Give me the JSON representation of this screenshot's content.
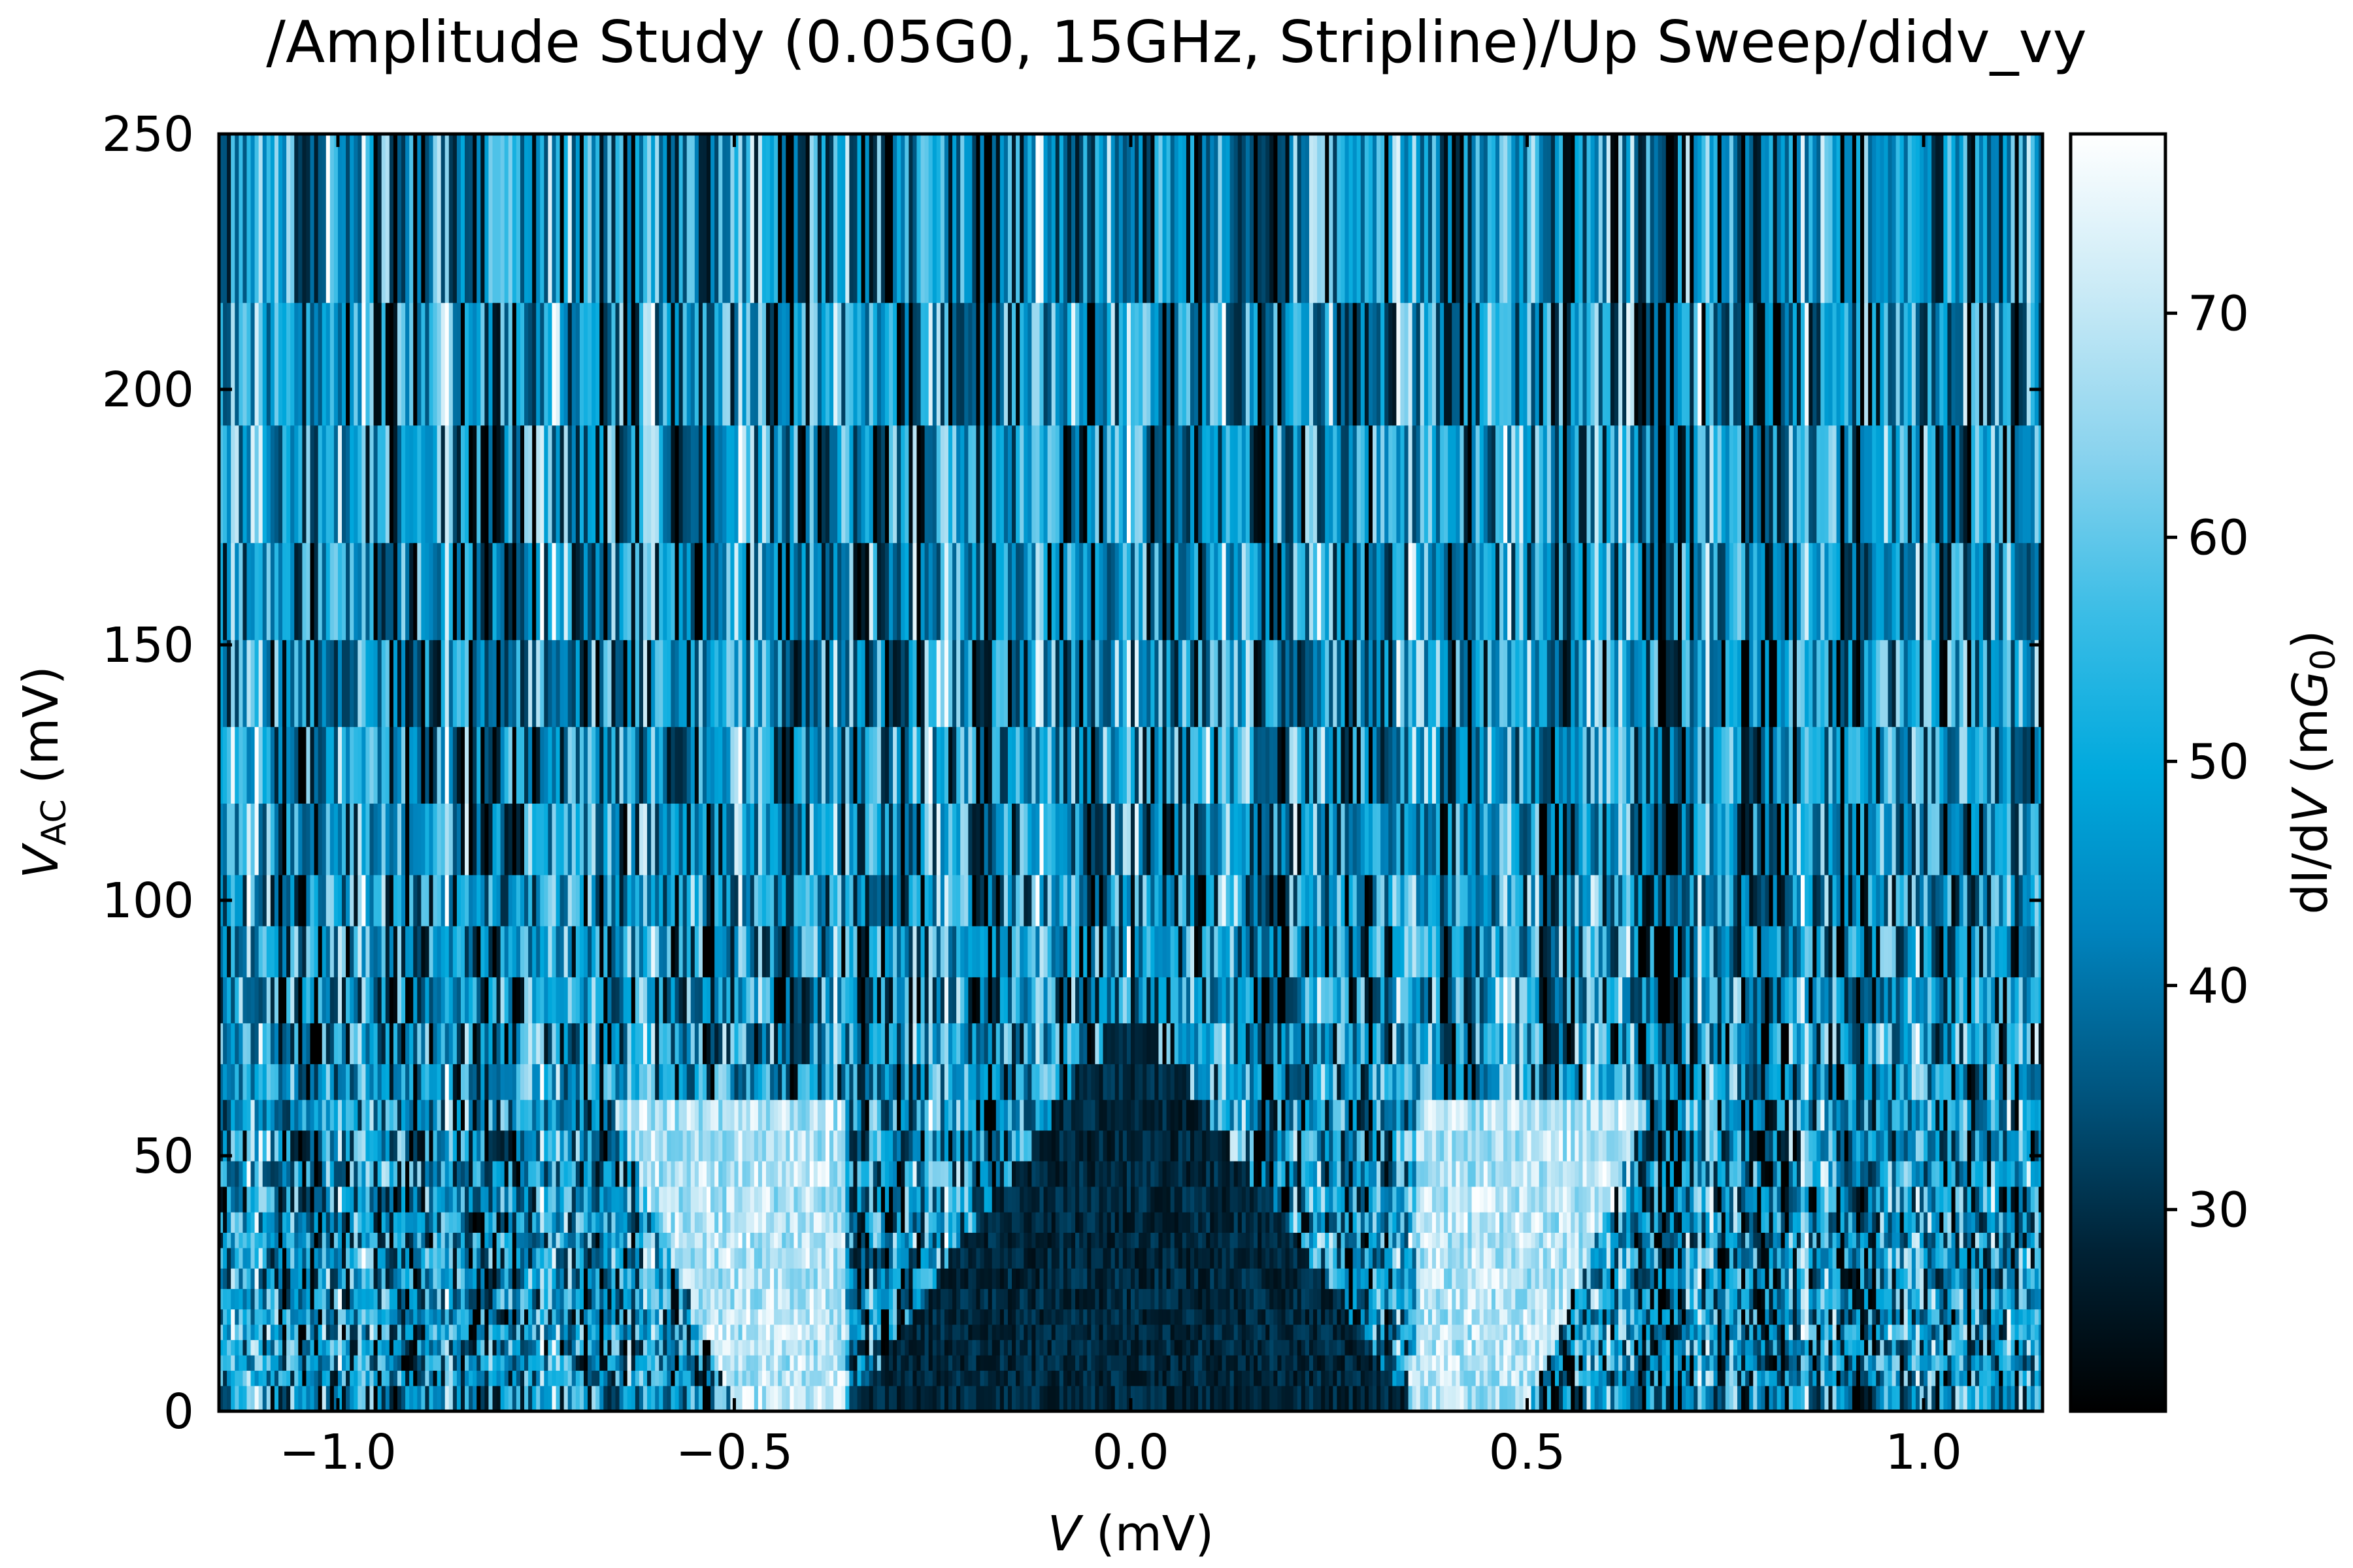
{
  "chart_data": {
    "type": "heatmap",
    "title": "/Amplitude Study (0.05G0, 15GHz, Stripline)/Up Sweep/didv_vy",
    "xlabel": {
      "var": "V",
      "unit": " (mV)"
    },
    "ylabel": {
      "var": "V",
      "sub": "AC",
      "unit": " (mV)"
    },
    "colorbar_label": {
      "pre": "dI/d",
      "var": "V",
      "mid": " (m",
      "var2": "G",
      "sub": "0",
      "post": ")"
    },
    "xlim": [
      -1.15,
      1.15
    ],
    "ylim": [
      0,
      250
    ],
    "clim": [
      21,
      78
    ],
    "x_ticks": [
      -1.0,
      -0.5,
      0.0,
      0.5,
      1.0
    ],
    "x_tick_labels": [
      "−1.0",
      "−0.5",
      "0.0",
      "0.5",
      "1.0"
    ],
    "y_ticks": [
      0,
      50,
      100,
      150,
      200,
      250
    ],
    "y_tick_labels": [
      "0",
      "50",
      "100",
      "150",
      "200",
      "250"
    ],
    "colorbar_ticks": [
      30,
      40,
      50,
      60,
      70
    ],
    "colorbar_tick_labels": [
      "30",
      "40",
      "50",
      "60",
      "70"
    ],
    "colormap": [
      "#000000",
      "#002235",
      "#00557f",
      "#0083bd",
      "#00a9dd",
      "#3bbde6",
      "#8ad3ee",
      "#c9eaf6",
      "#ffffff"
    ],
    "y_rows_mV": [
      0,
      5,
      8,
      11,
      14,
      17,
      20,
      24,
      28,
      32,
      35,
      39,
      44,
      49,
      55,
      61,
      68,
      76,
      85,
      95,
      105,
      119,
      134,
      151,
      170,
      193,
      217,
      250
    ],
    "n_columns": 460,
    "features": {
      "gap_edge_mV": 0.36,
      "edge_fan_slope_mV_per_mV": 0.0052,
      "sideband_spacing_mV": 0.062,
      "low_conductance_region": "triangle centered at V = 0 up to V_AC ≈ 70 mV",
      "high_conductance_region": "bright fans at |V| ≈ 0.36–0.5 mV spreading outward with V_AC"
    }
  }
}
